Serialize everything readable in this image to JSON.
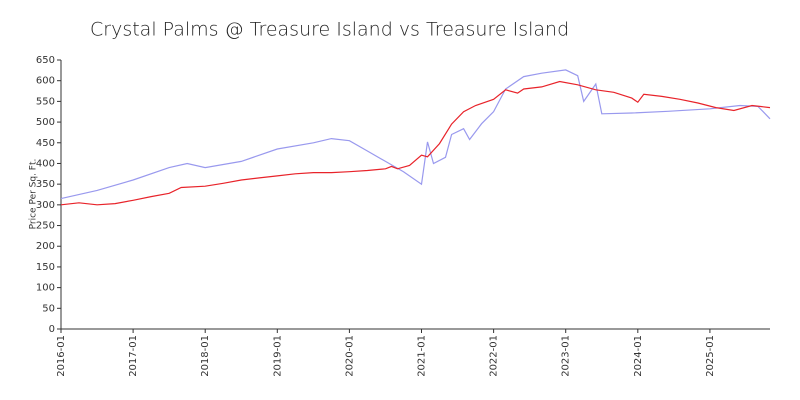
{
  "chart_data": {
    "type": "line",
    "title": "Crystal Palms @ Treasure Island vs Treasure Island",
    "y_label": "Price Per Sq. Ft.",
    "xlim": [
      "2016-01",
      "2025-11"
    ],
    "xticks": [
      "2016-01",
      "2017-01",
      "2018-01",
      "2019-01",
      "2020-01",
      "2021-01",
      "2022-01",
      "2023-01",
      "2024-01",
      "2025-01"
    ],
    "ylim": [
      0,
      650
    ],
    "yticks": [
      0,
      50,
      100,
      150,
      200,
      250,
      300,
      350,
      400,
      450,
      500,
      550,
      600,
      650
    ],
    "series": [
      {
        "color": "#9999ee",
        "x": [
          "2016-01",
          "2016-07",
          "2017-01",
          "2017-07",
          "2017-10",
          "2018-01",
          "2018-07",
          "2019-01",
          "2019-07",
          "2019-10",
          "2020-01",
          "2020-04",
          "2020-07",
          "2020-10",
          "2021-01",
          "2021-02",
          "2021-03",
          "2021-05",
          "2021-06",
          "2021-08",
          "2021-09",
          "2021-11",
          "2022-01",
          "2022-03",
          "2022-06",
          "2022-09",
          "2023-01",
          "2023-03",
          "2023-04",
          "2023-06",
          "2023-07",
          "2023-12",
          "2024-06",
          "2025-01",
          "2025-06",
          "2025-09",
          "2025-11"
        ],
        "values": [
          315,
          335,
          360,
          390,
          400,
          390,
          405,
          435,
          450,
          460,
          455,
          430,
          405,
          380,
          350,
          452,
          400,
          415,
          470,
          484,
          458,
          496,
          525,
          580,
          610,
          618,
          626,
          612,
          550,
          592,
          520,
          522,
          526,
          532,
          540,
          538,
          508
        ]
      },
      {
        "color": "#e8232a",
        "x": [
          "2016-01",
          "2016-04",
          "2016-07",
          "2016-10",
          "2017-01",
          "2017-04",
          "2017-07",
          "2017-09",
          "2018-01",
          "2018-04",
          "2018-07",
          "2018-10",
          "2019-01",
          "2019-04",
          "2019-07",
          "2019-10",
          "2020-01",
          "2020-04",
          "2020-07",
          "2020-08",
          "2020-09",
          "2020-11",
          "2021-01",
          "2021-02",
          "2021-04",
          "2021-06",
          "2021-08",
          "2021-10",
          "2022-01",
          "2022-03",
          "2022-05",
          "2022-06",
          "2022-09",
          "2022-12",
          "2023-03",
          "2023-06",
          "2023-09",
          "2023-12",
          "2024-01",
          "2024-02",
          "2024-05",
          "2024-08",
          "2024-11",
          "2025-02",
          "2025-05",
          "2025-08",
          "2025-11"
        ],
        "values": [
          300,
          305,
          300,
          303,
          311,
          320,
          328,
          342,
          345,
          352,
          360,
          365,
          370,
          375,
          378,
          378,
          380,
          383,
          387,
          393,
          387,
          395,
          420,
          416,
          448,
          495,
          525,
          540,
          555,
          578,
          570,
          580,
          585,
          598,
          590,
          578,
          572,
          558,
          548,
          567,
          562,
          555,
          546,
          535,
          528,
          540,
          535
        ]
      }
    ]
  }
}
